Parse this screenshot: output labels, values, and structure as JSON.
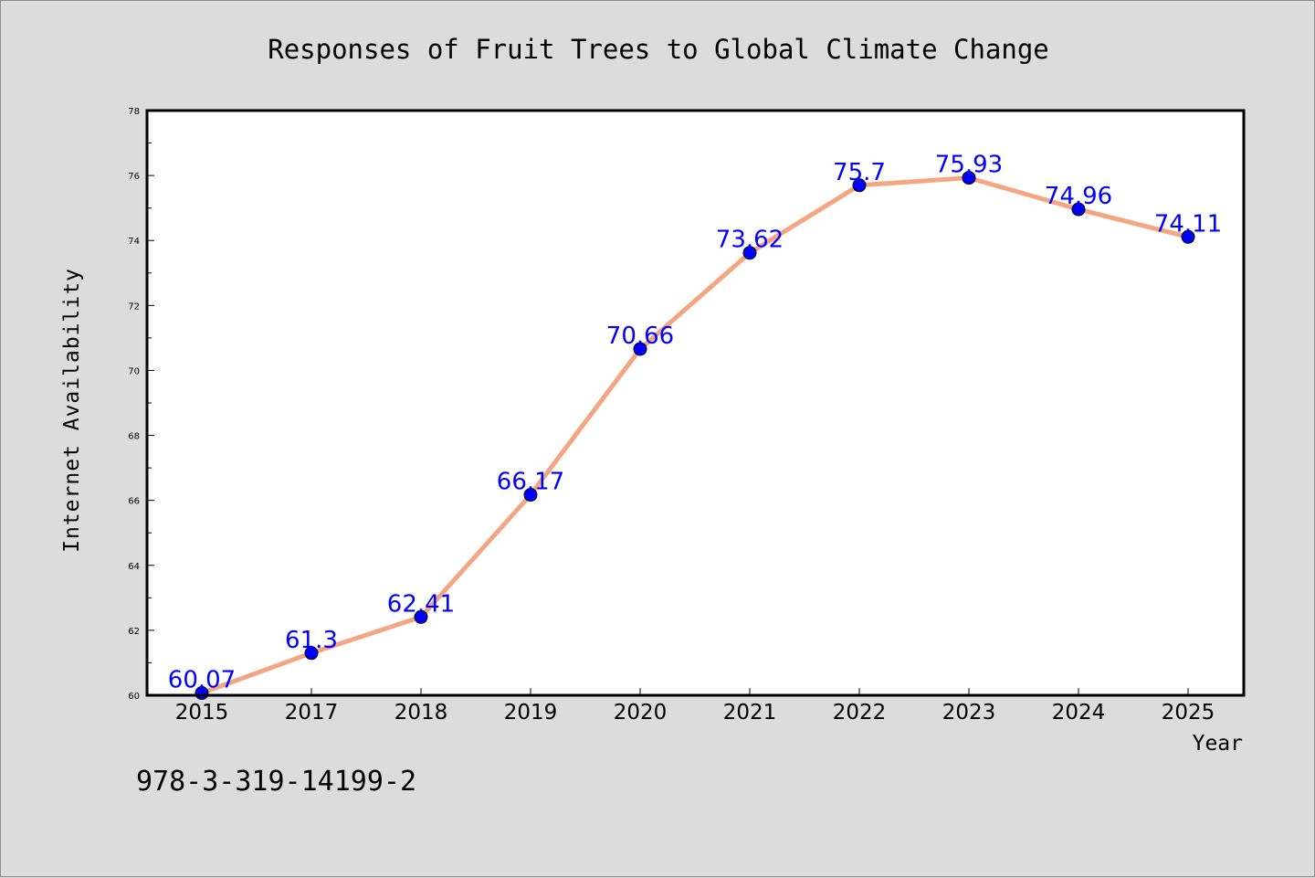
{
  "chart_data": {
    "type": "line",
    "title": "Responses of Fruit Trees to Global Climate Change",
    "xlabel": "Year",
    "ylabel": "Internet Availability",
    "categories": [
      "2015",
      "2017",
      "2018",
      "2019",
      "2020",
      "2021",
      "2022",
      "2023",
      "2024",
      "2025"
    ],
    "series": [
      {
        "values": [
          60.07,
          61.3,
          62.41,
          66.17,
          70.66,
          73.62,
          75.7,
          75.93,
          74.96,
          74.11
        ]
      }
    ],
    "data_labels": [
      "60.07",
      "61.3",
      "62.41",
      "66.17",
      "70.66",
      "73.62",
      "75.7",
      "75.93",
      "74.96",
      "74.11"
    ],
    "ylim": [
      60,
      78
    ],
    "yticks": [
      60,
      62,
      64,
      66,
      68,
      70,
      72,
      74,
      76,
      78
    ],
    "grid": false,
    "colors": {
      "line": "#f4a582",
      "marker": "#0000ff",
      "label": "#0000ff",
      "background": "#dcdcdc",
      "plot_area": "#ffffff"
    }
  },
  "annotation": {
    "isbn": "978-3-319-14199-2"
  }
}
